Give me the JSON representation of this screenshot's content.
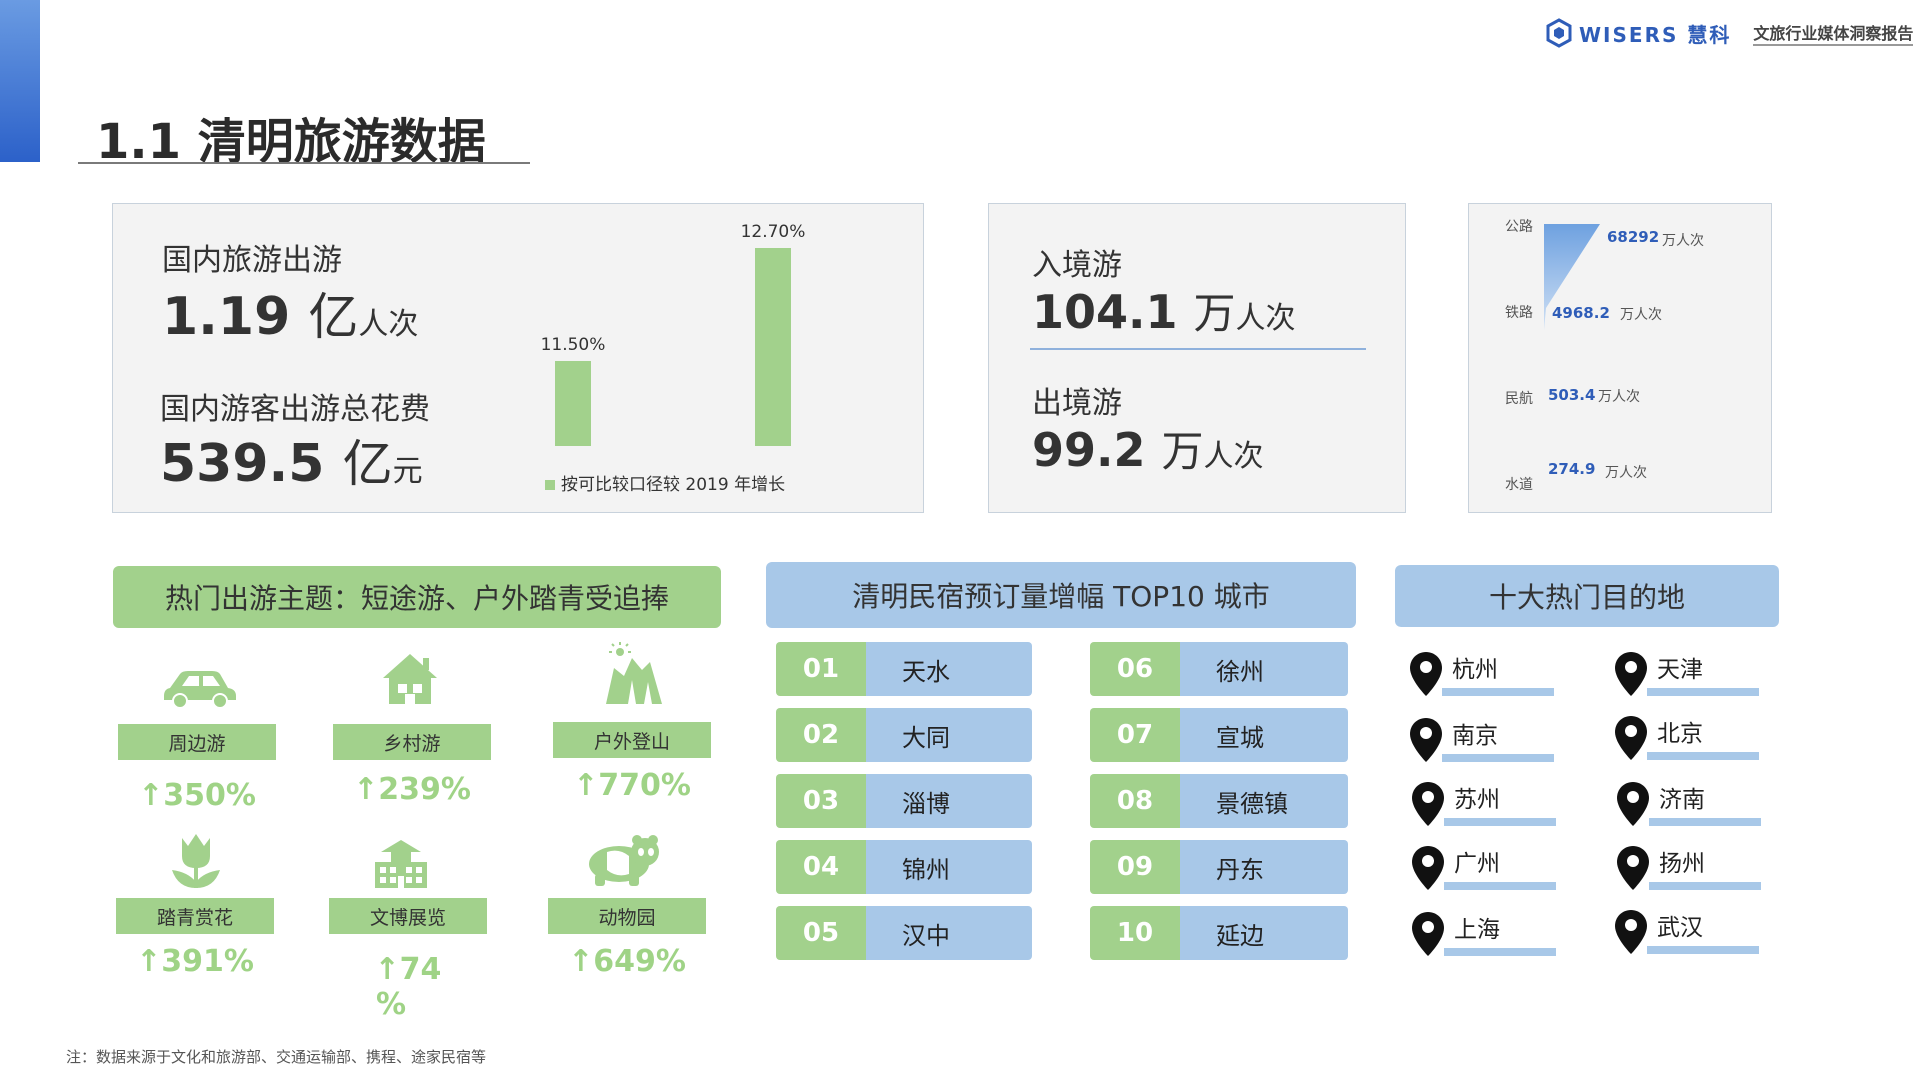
{
  "header": {
    "title": "1.1  清明旅游数据",
    "brand_name": "WISERS 慧科",
    "brand_tag": "文旅行业媒体洞察报告"
  },
  "domestic": {
    "trips_label": "国内旅游出游",
    "trips_value": "1.19",
    "trips_unit_big": "亿",
    "trips_unit_small": "人次",
    "spend_label": "国内游客出游总花费",
    "spend_value": "539.5",
    "spend_unit_big": "亿",
    "spend_unit_small": "元"
  },
  "chart_data": {
    "type": "bar",
    "categories": [
      "国内旅游出游",
      "国内游客出游总花费"
    ],
    "values": [
      11.5,
      12.7
    ],
    "value_labels": [
      "11.50%",
      "12.70%"
    ],
    "legend": "按可比较口径较 2019 年增长",
    "ylim": [
      0,
      13
    ]
  },
  "crossborder": {
    "inbound_label": "入境游",
    "inbound_value": "104.1",
    "inbound_unit_big": "万",
    "inbound_unit_small": "人次",
    "outbound_label": "出境游",
    "outbound_value": "99.2",
    "outbound_unit_big": "万",
    "outbound_unit_small": "人次"
  },
  "transport": {
    "items": [
      {
        "mode": "公路",
        "value": "68292",
        "unit": "万人次"
      },
      {
        "mode": "铁路",
        "value": "4968.2",
        "unit": "万人次"
      },
      {
        "mode": "民航",
        "value": "503.4",
        "unit": "万人次"
      },
      {
        "mode": "水道",
        "value": "274.9",
        "unit": "万人次"
      }
    ]
  },
  "themes": {
    "title": "热门出游主题：短途游、户外踏青受追捧",
    "items": [
      {
        "icon": "car-icon",
        "label": "周边游",
        "growth": "↑350%"
      },
      {
        "icon": "house-icon",
        "label": "乡村游",
        "growth": "↑239%"
      },
      {
        "icon": "mountain-icon",
        "label": "户外登山",
        "growth": "↑770%"
      },
      {
        "icon": "tulip-icon",
        "label": "踏青赏花",
        "growth": "↑391%"
      },
      {
        "icon": "museum-icon",
        "label": "文博展览",
        "growth_line1": "↑74",
        "growth_line2": "%"
      },
      {
        "icon": "panda-icon",
        "label": "动物园",
        "growth": "↑649%"
      }
    ]
  },
  "homestay": {
    "title": "清明民宿预订量增幅 TOP10 城市",
    "items": [
      {
        "rank": "01",
        "city": "天水"
      },
      {
        "rank": "02",
        "city": "大同"
      },
      {
        "rank": "03",
        "city": "淄博"
      },
      {
        "rank": "04",
        "city": "锦州"
      },
      {
        "rank": "05",
        "city": "汉中"
      },
      {
        "rank": "06",
        "city": "徐州"
      },
      {
        "rank": "07",
        "city": "宣城"
      },
      {
        "rank": "08",
        "city": "景德镇"
      },
      {
        "rank": "09",
        "city": "丹东"
      },
      {
        "rank": "10",
        "city": "延边"
      }
    ]
  },
  "destinations": {
    "title": "十大热门目的地",
    "items": [
      "杭州",
      "天津",
      "南京",
      "北京",
      "苏州",
      "济南",
      "广州",
      "扬州",
      "上海",
      "武汉"
    ]
  },
  "footnote": "注：数据来源于文化和旅游部、交通运输部、携程、途家民宿等",
  "colors": {
    "green": "#a2d18c",
    "blue": "#a8c8e8",
    "brand_blue": "#2f5db8",
    "growth_green": "#9fd386"
  }
}
